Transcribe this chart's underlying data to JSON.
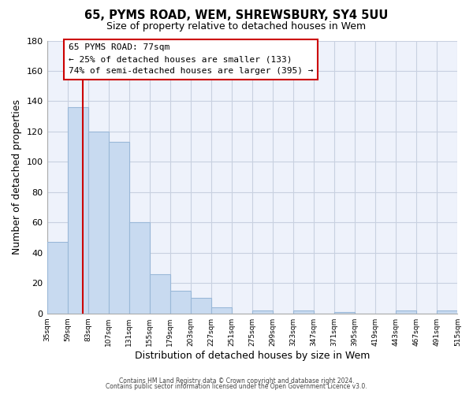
{
  "title": "65, PYMS ROAD, WEM, SHREWSBURY, SY4 5UU",
  "subtitle": "Size of property relative to detached houses in Wem",
  "xlabel": "Distribution of detached houses by size in Wem",
  "ylabel": "Number of detached properties",
  "bar_color": "#c8daf0",
  "bar_edge_color": "#9ab8d8",
  "plot_bg_color": "#eef2fb",
  "bins_left": [
    35,
    59,
    83,
    107,
    131,
    155,
    179,
    203,
    227,
    251,
    275,
    299,
    323,
    347,
    371,
    395,
    419,
    443,
    467,
    491
  ],
  "bin_width": 24,
  "values": [
    47,
    136,
    120,
    113,
    60,
    26,
    15,
    10,
    4,
    0,
    2,
    0,
    2,
    0,
    1,
    0,
    0,
    2,
    0,
    2
  ],
  "tick_labels": [
    "35sqm",
    "59sqm",
    "83sqm",
    "107sqm",
    "131sqm",
    "155sqm",
    "179sqm",
    "203sqm",
    "227sqm",
    "251sqm",
    "275sqm",
    "299sqm",
    "323sqm",
    "347sqm",
    "371sqm",
    "395sqm",
    "419sqm",
    "443sqm",
    "467sqm",
    "491sqm",
    "515sqm"
  ],
  "ylim": [
    0,
    180
  ],
  "yticks": [
    0,
    20,
    40,
    60,
    80,
    100,
    120,
    140,
    160,
    180
  ],
  "vline_x": 77,
  "vline_color": "#cc0000",
  "annotation_line1": "65 PYMS ROAD: 77sqm",
  "annotation_line2": "← 25% of detached houses are smaller (133)",
  "annotation_line3": "74% of semi-detached houses are larger (395) →",
  "footer_line1": "Contains HM Land Registry data © Crown copyright and database right 2024.",
  "footer_line2": "Contains public sector information licensed under the Open Government Licence v3.0.",
  "background_color": "#ffffff",
  "grid_color": "#c8d0e0"
}
